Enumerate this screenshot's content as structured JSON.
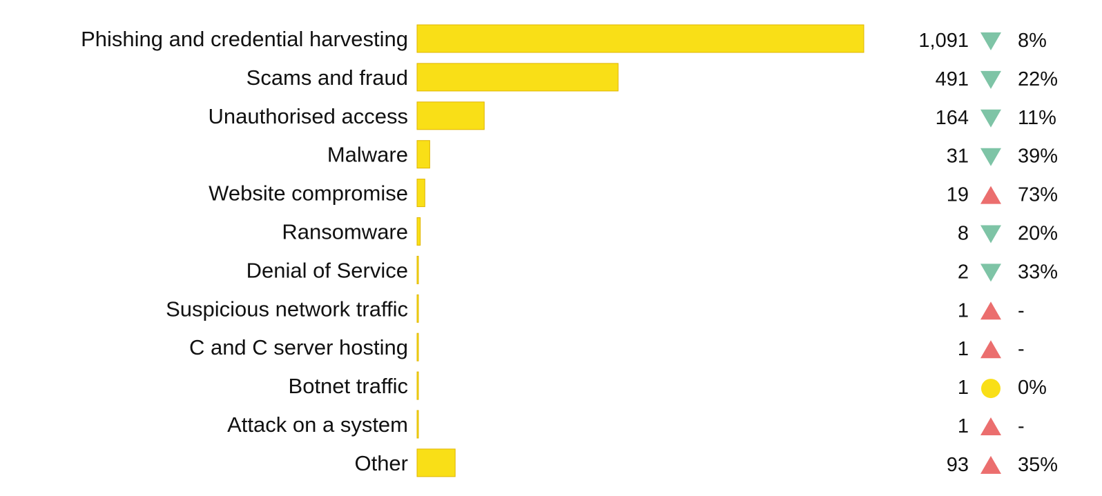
{
  "chart_data": {
    "type": "bar",
    "orientation": "horizontal",
    "title": "",
    "xlabel": "",
    "ylabel": "",
    "grid": false,
    "xlim": [
      0,
      1091
    ],
    "categories": [
      "Phishing and credential harvesting",
      "Scams and fraud",
      "Unauthorised access",
      "Malware",
      "Website compromise",
      "Ransomware",
      "Denial of Service",
      "Suspicious network traffic",
      "C and C server hosting",
      "Botnet traffic",
      "Attack on a system",
      "Other"
    ],
    "values": [
      1091,
      491,
      164,
      31,
      19,
      8,
      2,
      1,
      1,
      1,
      1,
      93
    ],
    "value_labels": [
      "1,091",
      "491",
      "164",
      "31",
      "19",
      "8",
      "2",
      "1",
      "1",
      "1",
      "1",
      "93"
    ],
    "change_labels": [
      "8%",
      "22%",
      "11%",
      "39%",
      "73%",
      "20%",
      "33%",
      "-",
      "-",
      "0%",
      "-",
      "35%"
    ],
    "trend": [
      "down",
      "down",
      "down",
      "down",
      "up",
      "down",
      "down",
      "up",
      "up",
      "same",
      "up",
      "up"
    ],
    "colors": {
      "bar": "#f9df17",
      "bar_border": "#e0b400",
      "down": "#7ec4a6",
      "up": "#eb6e6e",
      "same": "#f9df17"
    }
  }
}
